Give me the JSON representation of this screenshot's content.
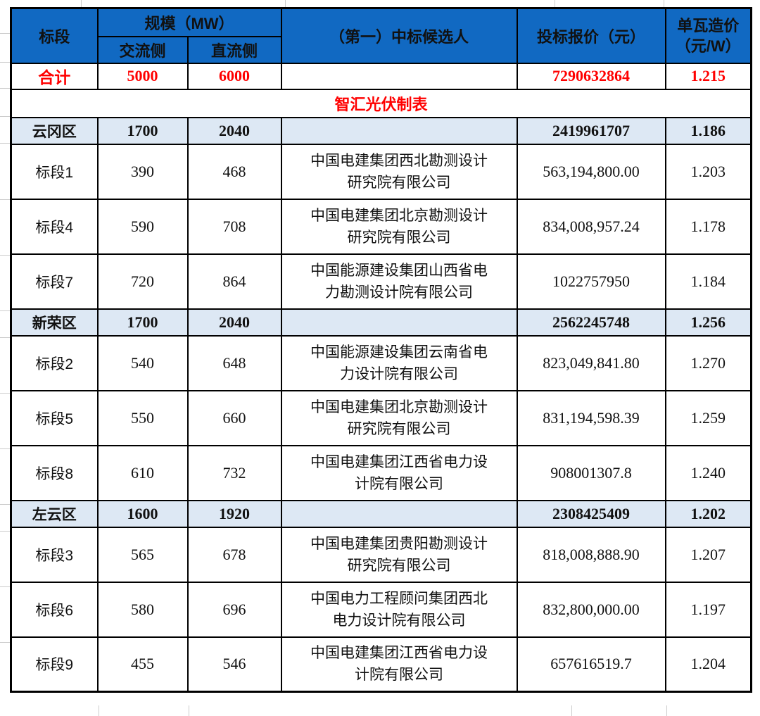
{
  "header": {
    "col_section": "标段",
    "col_scale": "规模（MW）",
    "col_ac": "交流侧",
    "col_dc": "直流侧",
    "col_candidate": "（第一）中标候选人",
    "col_price": "投标报价（元）",
    "col_unit_line1": "单瓦造价",
    "col_unit_line2": "（元/W）"
  },
  "total_row": {
    "label": "合计",
    "ac": "5000",
    "dc": "6000",
    "candidate": "",
    "price": "7290632864",
    "unit": "1.215"
  },
  "credit_row": {
    "text": "智汇光伏制表"
  },
  "sections": [
    {
      "summary": {
        "label": "云冈区",
        "ac": "1700",
        "dc": "2040",
        "candidate": "",
        "price": "2419961707",
        "unit": "1.186"
      },
      "rows": [
        {
          "label": "标段1",
          "ac": "390",
          "dc": "468",
          "candidate": "中国电建集团西北勘测设计研究院有限公司",
          "price": "563,194,800.00",
          "unit": "1.203"
        },
        {
          "label": "标段4",
          "ac": "590",
          "dc": "708",
          "candidate": "中国电建集团北京勘测设计研究院有限公司",
          "price": "834,008,957.24",
          "unit": "1.178"
        },
        {
          "label": "标段7",
          "ac": "720",
          "dc": "864",
          "candidate": "中国能源建设集团山西省电力勘测设计院有限公司",
          "price": "1022757950",
          "unit": "1.184"
        }
      ]
    },
    {
      "summary": {
        "label": "新荣区",
        "ac": "1700",
        "dc": "2040",
        "candidate": "",
        "price": "2562245748",
        "unit": "1.256"
      },
      "rows": [
        {
          "label": "标段2",
          "ac": "540",
          "dc": "648",
          "candidate": "中国能源建设集团云南省电力设计院有限公司",
          "price": "823,049,841.80",
          "unit": "1.270"
        },
        {
          "label": "标段5",
          "ac": "550",
          "dc": "660",
          "candidate": "中国电建集团北京勘测设计研究院有限公司",
          "price": "831,194,598.39",
          "unit": "1.259"
        },
        {
          "label": "标段8",
          "ac": "610",
          "dc": "732",
          "candidate": "中国电建集团江西省电力设计院有限公司",
          "price": "908001307.8",
          "unit": "1.240"
        }
      ]
    },
    {
      "summary": {
        "label": "左云区",
        "ac": "1600",
        "dc": "1920",
        "candidate": "",
        "price": "2308425409",
        "unit": "1.202"
      },
      "rows": [
        {
          "label": "标段3",
          "ac": "565",
          "dc": "678",
          "candidate": "中国电建集团贵阳勘测设计研究院有限公司",
          "price": "818,008,888.90",
          "unit": "1.207"
        },
        {
          "label": "标段6",
          "ac": "580",
          "dc": "696",
          "candidate": "中国电力工程顾问集团西北电力设计院有限公司",
          "price": "832,800,000.00",
          "unit": "1.197"
        },
        {
          "label": "标段9",
          "ac": "455",
          "dc": "546",
          "candidate": "中国电建集团江西省电力设计院有限公司",
          "price": "657616519.7",
          "unit": "1.204"
        }
      ]
    }
  ],
  "colors": {
    "header_blue": "#1169C2",
    "section_bg": "#DDE8F4",
    "highlight_red": "#FF0000",
    "border_black": "#000000",
    "gridline_gray": "#CCCCCC"
  }
}
